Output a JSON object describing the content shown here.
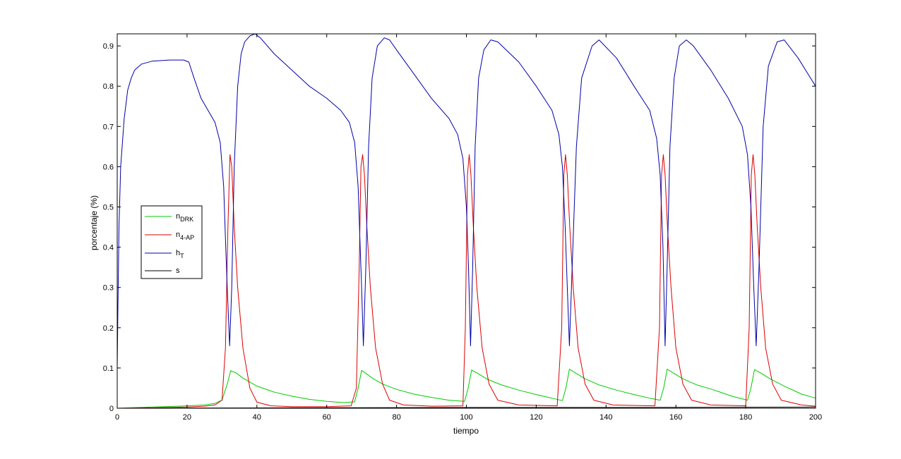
{
  "chart_data": {
    "type": "line",
    "title": "",
    "xlabel": "tiempo",
    "ylabel": "porcentaje (%)",
    "xlim": [
      0,
      200
    ],
    "ylim": [
      0,
      0.93
    ],
    "xticks": [
      0,
      20,
      40,
      60,
      80,
      100,
      120,
      140,
      160,
      180,
      200
    ],
    "yticks": [
      0,
      0.1,
      0.2,
      0.3,
      0.4,
      0.5,
      0.6,
      0.7,
      0.8,
      0.9
    ],
    "grid": false,
    "legend_position": "center-left",
    "series": [
      {
        "name": "nDRK",
        "label_main": "n",
        "label_sub": "DRK",
        "color": "#00cc00",
        "x": [
          0,
          10,
          20,
          25,
          28,
          30,
          31.5,
          32.5,
          34,
          36,
          40,
          45,
          50,
          55,
          60,
          65,
          68,
          69,
          70,
          71,
          73,
          76,
          80,
          85,
          90,
          95,
          99.5,
          100.5,
          101.5,
          103,
          106,
          110,
          115,
          120,
          125,
          127.5,
          128.5,
          129.5,
          131,
          134,
          138,
          143,
          148,
          153,
          155.5,
          156.5,
          157.5,
          159,
          162,
          166,
          171,
          176,
          180.5,
          181.5,
          182.5,
          184,
          187,
          191,
          196,
          200
        ],
        "y": [
          0,
          0.003,
          0.006,
          0.008,
          0.012,
          0.02,
          0.06,
          0.093,
          0.088,
          0.075,
          0.055,
          0.04,
          0.03,
          0.022,
          0.017,
          0.014,
          0.016,
          0.05,
          0.094,
          0.088,
          0.075,
          0.06,
          0.047,
          0.035,
          0.027,
          0.02,
          0.017,
          0.05,
          0.095,
          0.088,
          0.072,
          0.058,
          0.045,
          0.034,
          0.024,
          0.019,
          0.05,
          0.097,
          0.089,
          0.073,
          0.058,
          0.045,
          0.034,
          0.024,
          0.02,
          0.05,
          0.097,
          0.089,
          0.073,
          0.058,
          0.045,
          0.03,
          0.02,
          0.05,
          0.096,
          0.089,
          0.073,
          0.055,
          0.035,
          0.025
        ]
      },
      {
        "name": "n4-AP",
        "label_main": "n",
        "label_sub": "4-AP",
        "color": "#dd0000",
        "x": [
          0,
          10,
          20,
          25,
          28,
          30,
          31,
          31.7,
          32.3,
          32.8,
          33.5,
          34.5,
          36,
          38,
          40,
          44,
          50,
          60,
          67,
          68.5,
          69.3,
          69.8,
          70.3,
          70.8,
          71.5,
          72.5,
          74,
          76,
          78,
          82,
          90,
          99,
          99.7,
          100.3,
          100.8,
          101.3,
          102,
          103,
          104.5,
          106.5,
          109,
          115,
          126,
          127.3,
          127.9,
          128.4,
          128.9,
          129.6,
          130.6,
          132,
          134,
          136.5,
          142,
          154,
          155.3,
          155.9,
          156.4,
          156.9,
          157.6,
          158.6,
          160,
          162,
          164.5,
          170,
          180,
          181,
          181.6,
          182.1,
          182.6,
          183.3,
          184.3,
          185.7,
          187.7,
          190.2,
          196,
          200
        ],
        "y": [
          0,
          0.001,
          0.003,
          0.005,
          0.008,
          0.02,
          0.15,
          0.45,
          0.63,
          0.6,
          0.45,
          0.3,
          0.15,
          0.05,
          0.015,
          0.006,
          0.004,
          0.004,
          0.006,
          0.05,
          0.35,
          0.6,
          0.63,
          0.58,
          0.45,
          0.3,
          0.15,
          0.06,
          0.02,
          0.008,
          0.005,
          0.006,
          0.2,
          0.58,
          0.63,
          0.58,
          0.45,
          0.3,
          0.15,
          0.06,
          0.02,
          0.008,
          0.006,
          0.2,
          0.58,
          0.63,
          0.58,
          0.45,
          0.3,
          0.15,
          0.06,
          0.02,
          0.008,
          0.006,
          0.2,
          0.58,
          0.63,
          0.58,
          0.45,
          0.3,
          0.15,
          0.06,
          0.02,
          0.008,
          0.006,
          0.2,
          0.58,
          0.63,
          0.58,
          0.45,
          0.3,
          0.15,
          0.06,
          0.02,
          0.008,
          0.005
        ]
      },
      {
        "name": "hT",
        "label_main": "h",
        "label_sub": "T",
        "color": "#0000aa",
        "x": [
          0,
          0.2,
          0.5,
          1,
          2,
          3,
          4,
          5,
          7,
          10,
          15,
          19,
          20.5,
          22,
          24,
          26,
          28,
          29.5,
          30.5,
          31,
          31.5,
          32.2,
          32.8,
          33.5,
          34.5,
          35.5,
          36.5,
          38,
          39.5,
          41,
          45,
          50,
          55,
          60,
          64,
          66.5,
          68,
          69,
          69.5,
          70,
          70.5,
          71.2,
          72,
          73,
          74.5,
          76.5,
          78,
          80,
          85,
          90,
          95,
          97.5,
          99,
          100,
          100.6,
          101.2,
          101.8,
          102.5,
          103.5,
          105,
          107,
          109,
          115,
          120,
          124.5,
          126.5,
          127.5,
          128.3,
          128.9,
          129.5,
          130.3,
          131.5,
          133,
          136,
          138,
          143,
          148,
          152.5,
          154.5,
          155.5,
          156.3,
          156.9,
          157.5,
          158.3,
          159.5,
          161,
          163,
          165,
          170,
          175,
          179,
          180.5,
          181.5,
          182.3,
          183,
          183.8,
          185,
          186.5,
          189,
          191,
          195,
          200
        ],
        "y": [
          0.1,
          0.25,
          0.45,
          0.6,
          0.72,
          0.79,
          0.82,
          0.84,
          0.855,
          0.862,
          0.865,
          0.865,
          0.86,
          0.82,
          0.77,
          0.74,
          0.71,
          0.66,
          0.55,
          0.42,
          0.3,
          0.155,
          0.3,
          0.6,
          0.8,
          0.88,
          0.91,
          0.925,
          0.93,
          0.92,
          0.88,
          0.84,
          0.8,
          0.77,
          0.74,
          0.71,
          0.66,
          0.55,
          0.42,
          0.3,
          0.155,
          0.35,
          0.65,
          0.82,
          0.9,
          0.92,
          0.915,
          0.89,
          0.83,
          0.77,
          0.72,
          0.68,
          0.62,
          0.5,
          0.35,
          0.155,
          0.35,
          0.65,
          0.82,
          0.89,
          0.915,
          0.91,
          0.86,
          0.8,
          0.74,
          0.68,
          0.6,
          0.45,
          0.3,
          0.155,
          0.35,
          0.65,
          0.82,
          0.9,
          0.915,
          0.87,
          0.8,
          0.74,
          0.67,
          0.58,
          0.4,
          0.155,
          0.35,
          0.65,
          0.82,
          0.9,
          0.915,
          0.9,
          0.84,
          0.77,
          0.7,
          0.63,
          0.5,
          0.3,
          0.155,
          0.35,
          0.7,
          0.85,
          0.91,
          0.915,
          0.87,
          0.8
        ]
      },
      {
        "name": "s",
        "label_main": "s",
        "label_sub": "",
        "color": "#000000",
        "x": [
          0,
          50,
          100,
          150,
          200
        ],
        "y": [
          0,
          0.001,
          0.002,
          0.002,
          0.003
        ]
      }
    ]
  }
}
